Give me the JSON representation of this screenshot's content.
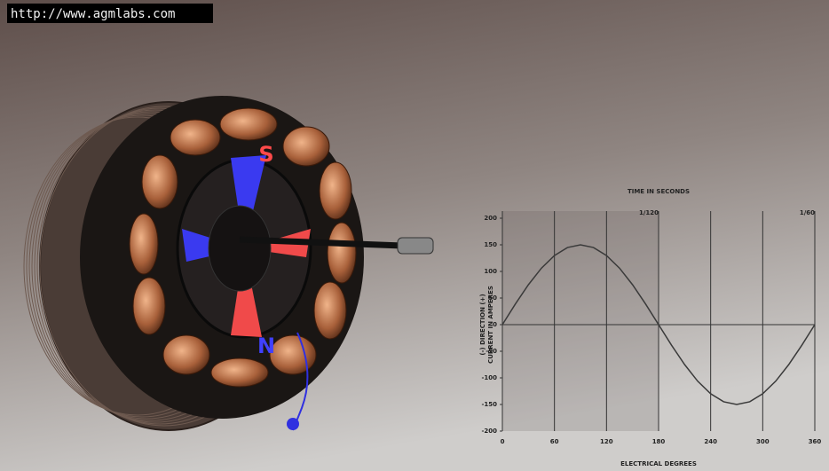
{
  "url": "http://www.agmlabs.com",
  "motor_labels": {
    "south": "S",
    "north": "N"
  },
  "chart_data": {
    "type": "line",
    "title": "TIME IN SECONDS",
    "x_label": "ELECTRICAL DEGREES",
    "y_label": "CURRENT IN AMPERES",
    "y_label_2": "(-) DIRECTION (+)",
    "x": [
      0,
      15,
      30,
      45,
      60,
      75,
      90,
      105,
      120,
      135,
      150,
      165,
      180,
      195,
      210,
      225,
      240,
      255,
      270,
      285,
      300,
      315,
      330,
      345,
      360
    ],
    "series": [
      {
        "color": "#3a3a3a",
        "values": [
          0,
          38.8,
          75,
          106.1,
          129.9,
          144.9,
          150,
          144.9,
          129.9,
          106.1,
          75,
          38.8,
          0,
          -38.8,
          -75,
          -106.1,
          -129.9,
          -144.9,
          -150,
          -144.9,
          -129.9,
          -106.1,
          -75,
          -38.8,
          0
        ]
      }
    ],
    "xlim": [
      0,
      360
    ],
    "xticks": [
      0,
      60,
      120,
      180,
      240,
      300,
      360
    ],
    "x2ticks": [
      {
        "value": 180,
        "label": "1/120"
      },
      {
        "value": 360,
        "label": "1/60"
      }
    ],
    "ylim": [
      -200,
      200
    ],
    "yticks": [
      200,
      150,
      100,
      50,
      0,
      -50,
      -100,
      -150,
      -200
    ],
    "grid": true
  }
}
